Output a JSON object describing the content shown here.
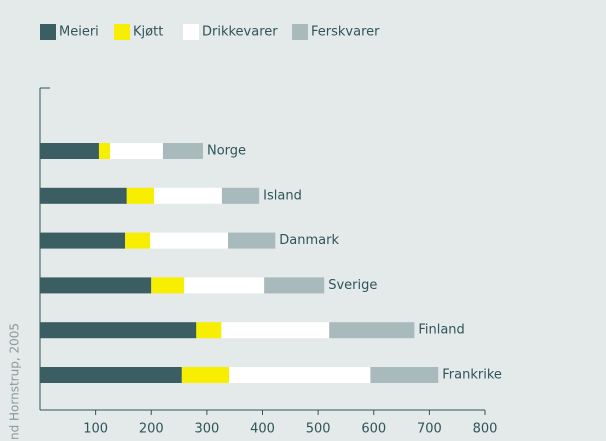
{
  "chart_data": {
    "type": "bar",
    "orientation": "horizontal",
    "stacked": true,
    "categories": [
      "Norge",
      "Island",
      "Danmark",
      "Sverige",
      "Finland",
      "Frankrike"
    ],
    "series": [
      {
        "name": "Meieri",
        "color": "#3b5e62",
        "values": [
          106,
          156,
          153,
          200,
          281,
          255
        ]
      },
      {
        "name": "Kjøtt",
        "color": "#f7ee00",
        "values": [
          20,
          49,
          45,
          59,
          45,
          85
        ]
      },
      {
        "name": "Drikkevarer",
        "color": "#ffffff",
        "values": [
          95,
          122,
          140,
          144,
          194,
          254
        ]
      },
      {
        "name": "Ferskvarer",
        "color": "#a9babd",
        "values": [
          72,
          67,
          85,
          108,
          153,
          122
        ]
      }
    ],
    "xlim": [
      0,
      800
    ],
    "xticks": [
      100,
      200,
      300,
      400,
      500,
      600,
      700,
      800
    ],
    "source": "nd Hornstrup, 2005"
  }
}
